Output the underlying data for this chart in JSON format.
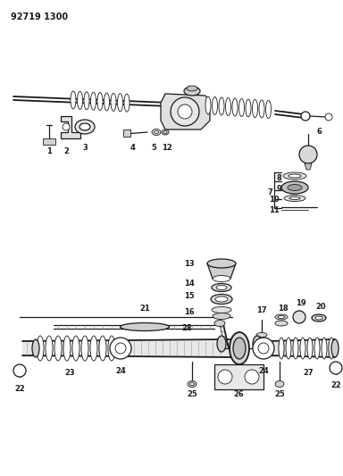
{
  "title": "92719 1300",
  "bg": "#ffffff",
  "fg": "#1a1a1a",
  "gray": "#888888",
  "lgray": "#cccccc",
  "dkgray": "#444444"
}
